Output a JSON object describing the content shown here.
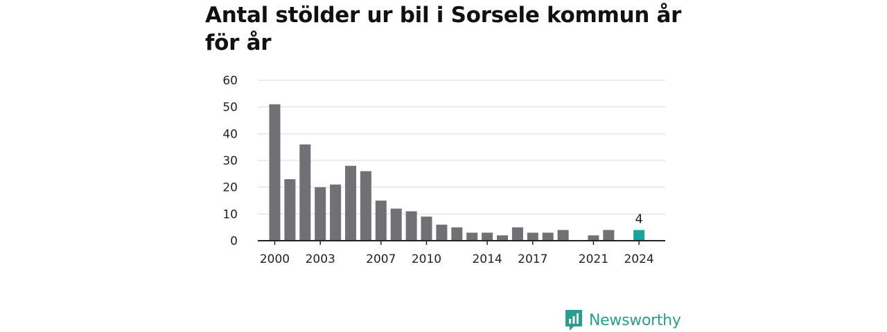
{
  "header": {
    "title": "Antal stölder ur bil i Sorsele kommun år för år"
  },
  "brand": {
    "name": "Newsworthy",
    "icon": "newsworthy-logo-icon",
    "color": "#2a9d8f"
  },
  "colors": {
    "bar": "#717075",
    "highlight": "#16a59a",
    "grid": "#d9d9d9",
    "axis": "#222222"
  },
  "chart_data": {
    "type": "bar",
    "title": "Antal stölder ur bil i Sorsele kommun år för år",
    "xlabel": "",
    "ylabel": "",
    "ylim": [
      0,
      60
    ],
    "yticks": [
      0,
      10,
      20,
      30,
      40,
      50,
      60
    ],
    "grid": true,
    "categories": [
      2000,
      2001,
      2002,
      2003,
      2004,
      2005,
      2006,
      2007,
      2008,
      2009,
      2010,
      2011,
      2012,
      2013,
      2014,
      2015,
      2016,
      2017,
      2018,
      2019,
      2020,
      2021,
      2022,
      2023,
      2024
    ],
    "values": [
      51,
      23,
      36,
      20,
      21,
      28,
      26,
      15,
      12,
      11,
      9,
      6,
      5,
      3,
      3,
      2,
      5,
      3,
      3,
      4,
      0,
      2,
      4,
      0,
      4
    ],
    "xtick_labels": [
      "2000",
      "2003",
      "2007",
      "2010",
      "2014",
      "2017",
      "2021",
      "2024"
    ],
    "highlight": {
      "category": 2024,
      "value": 4,
      "label": "4"
    }
  }
}
